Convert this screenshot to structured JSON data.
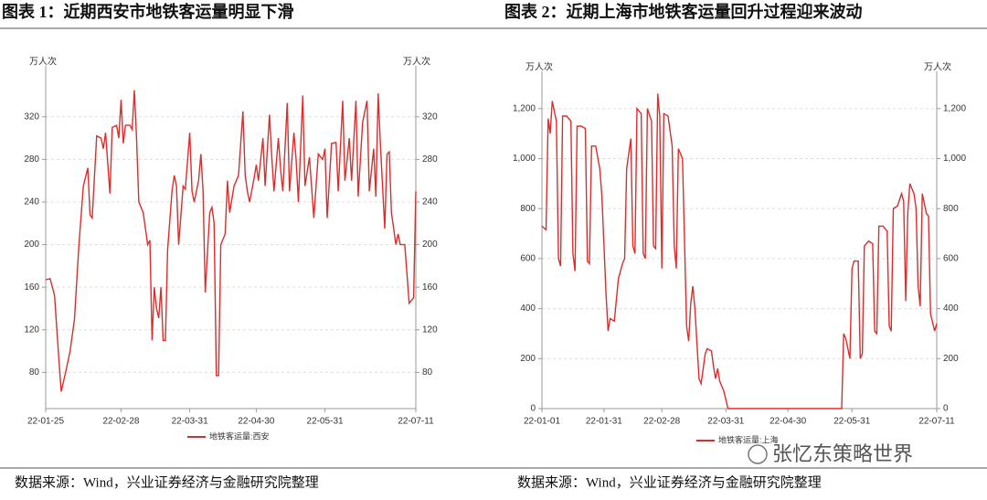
{
  "chart_data": [
    {
      "type": "line",
      "title": "图表 1：近期西安市地铁客运量明显下滑",
      "ylabel": "万人次",
      "y2label": "万人次",
      "source": "数据来源：Wind，兴业证券经济与金融研究院整理",
      "xlim": [
        "22-01-25",
        "22-07-11"
      ],
      "xticks": [
        "22-01-25",
        "22-02-28",
        "22-03-31",
        "22-04-30",
        "22-05-31",
        "22-07-11"
      ],
      "ylim": [
        46,
        361
      ],
      "yticks": [
        80,
        120,
        160,
        200,
        240,
        280,
        320
      ],
      "grid": true,
      "legend": "bottom",
      "x": [
        "22-01-25",
        "22-01-27",
        "22-01-29",
        "22-01-31",
        "22-02-01",
        "22-02-03",
        "22-02-05",
        "22-02-07",
        "22-02-09",
        "22-02-11",
        "22-02-13",
        "22-02-14",
        "22-02-15",
        "22-02-17",
        "22-02-19",
        "22-02-20",
        "22-02-21",
        "22-02-23",
        "22-02-24",
        "22-02-26",
        "22-02-27",
        "22-02-28",
        "22-03-01",
        "22-03-02",
        "22-03-04",
        "22-03-05",
        "22-03-06",
        "22-03-07",
        "22-03-08",
        "22-03-10",
        "22-03-12",
        "22-03-13",
        "22-03-14",
        "22-03-15",
        "22-03-16",
        "22-03-17",
        "22-03-18",
        "22-03-19",
        "22-03-20",
        "22-03-21",
        "22-03-23",
        "22-03-24",
        "22-03-25",
        "22-03-26",
        "22-03-28",
        "22-03-29",
        "22-03-31",
        "22-04-01",
        "22-04-02",
        "22-04-04",
        "22-04-05",
        "22-04-06",
        "22-04-07",
        "22-04-09",
        "22-04-10",
        "22-04-11",
        "22-04-12",
        "22-04-13",
        "22-04-14",
        "22-04-16",
        "22-04-17",
        "22-04-18",
        "22-04-20",
        "22-04-22",
        "22-04-24",
        "22-04-25",
        "22-04-26",
        "22-04-27",
        "22-04-29",
        "22-04-30",
        "22-05-01",
        "22-05-03",
        "22-05-04",
        "22-05-06",
        "22-05-07",
        "22-05-08",
        "22-05-10",
        "22-05-11",
        "22-05-12",
        "22-05-14",
        "22-05-15",
        "22-05-17",
        "22-05-18",
        "22-05-19",
        "22-05-21",
        "22-05-22",
        "22-05-24",
        "22-05-26",
        "22-05-28",
        "22-05-30",
        "22-05-31",
        "22-06-01",
        "22-06-03",
        "22-06-05",
        "22-06-06",
        "22-06-08",
        "22-06-09",
        "22-06-11",
        "22-06-12",
        "22-06-14",
        "22-06-15",
        "22-06-17",
        "22-06-19",
        "22-06-20",
        "22-06-22",
        "22-06-23",
        "22-06-24",
        "22-06-25",
        "22-06-27",
        "22-06-28",
        "22-06-29",
        "22-06-30",
        "22-07-02",
        "22-07-03",
        "22-07-04",
        "22-07-06",
        "22-07-08",
        "22-07-10",
        "22-07-11"
      ],
      "series": [
        {
          "name": "地铁客运量:西安",
          "color": "#e02b2b",
          "values": [
            167,
            168,
            152,
            90,
            62,
            80,
            100,
            130,
            200,
            255,
            272,
            228,
            225,
            302,
            300,
            290,
            305,
            248,
            310,
            312,
            300,
            336,
            295,
            312,
            312,
            308,
            345,
            300,
            240,
            230,
            200,
            204,
            110,
            160,
            140,
            131,
            160,
            110,
            110,
            195,
            250,
            265,
            255,
            200,
            255,
            252,
            305,
            250,
            240,
            260,
            285,
            250,
            155,
            230,
            235,
            220,
            77,
            77,
            200,
            210,
            260,
            230,
            255,
            265,
            325,
            265,
            250,
            240,
            262,
            275,
            260,
            300,
            255,
            322,
            282,
            250,
            300,
            270,
            250,
            333,
            250,
            305,
            280,
            240,
            340,
            255,
            282,
            225,
            285,
            280,
            290,
            225,
            295,
            296,
            250,
            335,
            260,
            300,
            260,
            335,
            245,
            315,
            335,
            250,
            290,
            245,
            342,
            295,
            215,
            285,
            287,
            230,
            200,
            210,
            200,
            200,
            145,
            150,
            250
          ]
        }
      ]
    },
    {
      "type": "line",
      "title": "图表 2：近期上海市地铁客运量回升过程迎来波动",
      "ylabel": "万人次",
      "y2label": "万人次",
      "source": "数据来源：Wind，兴业证券经济与金融研究院整理",
      "watermark": "张忆东策略世界",
      "xlim": [
        "22-01-01",
        "22-07-11"
      ],
      "xticks": [
        "22-01-01",
        "22-01-31",
        "22-02-28",
        "22-03-31",
        "22-04-30",
        "22-05-31",
        "22-07-11"
      ],
      "ylim": [
        0,
        1320
      ],
      "yticks": [
        0,
        200,
        400,
        600,
        800,
        {
          "value": 1000,
          "label": "1,000"
        },
        {
          "value": 1200,
          "label": "1,200"
        }
      ],
      "grid": true,
      "legend": "bottom",
      "x": [
        "22-01-01",
        "22-01-03",
        "22-01-04",
        "22-01-05",
        "22-01-06",
        "22-01-08",
        "22-01-09",
        "22-01-10",
        "22-01-11",
        "22-01-13",
        "22-01-15",
        "22-01-16",
        "22-01-17",
        "22-01-18",
        "22-01-20",
        "22-01-22",
        "22-01-23",
        "22-01-24",
        "22-01-25",
        "22-01-27",
        "22-01-29",
        "22-01-30",
        "22-02-01",
        "22-02-02",
        "22-02-03",
        "22-02-05",
        "22-02-07",
        "22-02-09",
        "22-02-10",
        "22-02-11",
        "22-02-13",
        "22-02-14",
        "22-02-15",
        "22-02-16",
        "22-02-18",
        "22-02-19",
        "22-02-20",
        "22-02-21",
        "22-02-23",
        "22-02-24",
        "22-02-25",
        "22-02-26",
        "22-02-27",
        "22-02-28",
        "22-03-01",
        "22-03-03",
        "22-03-05",
        "22-03-06",
        "22-03-07",
        "22-03-08",
        "22-03-10",
        "22-03-12",
        "22-03-13",
        "22-03-14",
        "22-03-15",
        "22-03-16",
        "22-03-18",
        "22-03-19",
        "22-03-21",
        "22-03-22",
        "22-03-24",
        "22-03-25",
        "22-03-26",
        "22-03-27",
        "22-03-28",
        "22-03-30",
        "22-04-01",
        "22-05-26",
        "22-05-27",
        "22-05-28",
        "22-05-30",
        "22-05-31",
        "22-06-01",
        "22-06-03",
        "22-06-04",
        "22-06-05",
        "22-06-06",
        "22-06-08",
        "22-06-10",
        "22-06-11",
        "22-06-12",
        "22-06-13",
        "22-06-15",
        "22-06-17",
        "22-06-18",
        "22-06-19",
        "22-06-20",
        "22-06-22",
        "22-06-24",
        "22-06-25",
        "22-06-26",
        "22-06-27",
        "22-06-28",
        "22-06-30",
        "22-07-01",
        "22-07-02",
        "22-07-03",
        "22-07-04",
        "22-07-06",
        "22-07-07",
        "22-07-08",
        "22-07-10",
        "22-07-11"
      ],
      "series": [
        {
          "name": "地铁客运量:上海",
          "color": "#e02b2b",
          "values": [
            730,
            715,
            1160,
            1100,
            1230,
            1150,
            600,
            570,
            1170,
            1170,
            1150,
            620,
            550,
            1130,
            1130,
            1120,
            590,
            580,
            1050,
            1050,
            960,
            850,
            460,
            310,
            360,
            350,
            520,
            580,
            600,
            960,
            1080,
            650,
            620,
            1200,
            1180,
            620,
            600,
            1200,
            1150,
            650,
            640,
            1260,
            1170,
            560,
            1180,
            1170,
            1050,
            650,
            560,
            1040,
            1000,
            330,
            270,
            420,
            490,
            400,
            120,
            100,
            220,
            240,
            230,
            170,
            120,
            160,
            110,
            70,
            0,
            0,
            300,
            280,
            200,
            560,
            590,
            590,
            200,
            220,
            650,
            670,
            660,
            310,
            300,
            730,
            730,
            710,
            330,
            310,
            800,
            810,
            860,
            830,
            430,
            780,
            900,
            860,
            800,
            490,
            410,
            860,
            780,
            770,
            380,
            310,
            340
          ]
        }
      ]
    }
  ]
}
